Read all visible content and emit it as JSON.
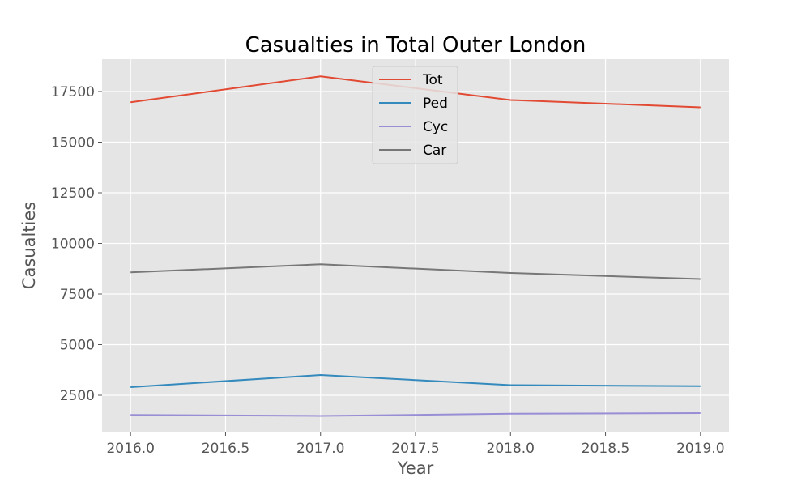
{
  "chart_data": {
    "type": "line",
    "title": "Casualties in Total Outer London",
    "xlabel": "Year",
    "ylabel": "Casualties",
    "x": [
      2016,
      2017,
      2018,
      2019
    ],
    "xlim": [
      2015.85,
      2019.15
    ],
    "ylim": [
      700,
      19100
    ],
    "xticks": [
      2016.0,
      2016.5,
      2017.0,
      2017.5,
      2018.0,
      2018.5,
      2019.0
    ],
    "xtick_labels": [
      "2016.0",
      "2016.5",
      "2017.0",
      "2017.5",
      "2018.0",
      "2018.5",
      "2019.0"
    ],
    "yticks": [
      2500,
      5000,
      7500,
      10000,
      12500,
      15000,
      17500
    ],
    "ytick_labels": [
      "2500",
      "5000",
      "7500",
      "10000",
      "12500",
      "15000",
      "17500"
    ],
    "grid": true,
    "legend_position": "top-center",
    "series": [
      {
        "name": "Tot",
        "color": "#e24a33",
        "values": [
          16970,
          18250,
          17080,
          16720
        ]
      },
      {
        "name": "Ped",
        "color": "#348abd",
        "values": [
          2900,
          3500,
          3000,
          2950
        ]
      },
      {
        "name": "Cyc",
        "color": "#988ed5",
        "values": [
          1530,
          1480,
          1590,
          1620
        ]
      },
      {
        "name": "Car",
        "color": "#777777",
        "values": [
          8570,
          8970,
          8540,
          8240
        ]
      }
    ]
  }
}
